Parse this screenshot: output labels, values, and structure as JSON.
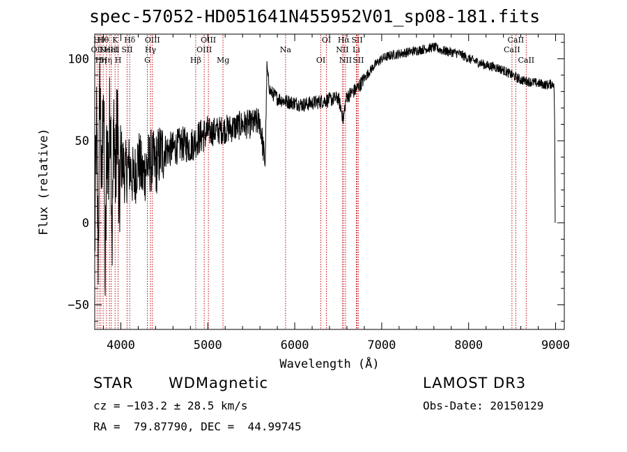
{
  "chart_data": {
    "type": "line",
    "title": "spec-57052-HD051641N455952V01_sp08-181.fits",
    "xlabel": "Wavelength (Å)",
    "ylabel": "Flux (relative)",
    "xlim": [
      3700,
      9100
    ],
    "ylim": [
      -65,
      115
    ],
    "x_ticks": [
      4000,
      5000,
      6000,
      7000,
      8000,
      9000
    ],
    "y_ticks": [
      -50,
      0,
      50,
      100
    ],
    "series": [
      {
        "name": "flux",
        "x": [
          3700,
          3720,
          3740,
          3760,
          3780,
          3800,
          3820,
          3840,
          3860,
          3880,
          3900,
          3920,
          3940,
          3960,
          3980,
          4000,
          4050,
          4100,
          4150,
          4200,
          4250,
          4300,
          4350,
          4400,
          4450,
          4500,
          4600,
          4700,
          4800,
          4900,
          5000,
          5100,
          5200,
          5300,
          5400,
          5500,
          5600,
          5660,
          5680,
          5700,
          5720,
          5800,
          5900,
          6000,
          6100,
          6200,
          6300,
          6400,
          6500,
          6540,
          6560,
          6580,
          6600,
          6650,
          6700,
          6750,
          6800,
          6900,
          7000,
          7100,
          7200,
          7300,
          7400,
          7500,
          7600,
          7700,
          7800,
          7900,
          8000,
          8100,
          8200,
          8300,
          8400,
          8500,
          8600,
          8700,
          8800,
          8900,
          8980,
          8990,
          8995
        ],
        "y": [
          -15,
          60,
          -20,
          90,
          10,
          95,
          -40,
          55,
          30,
          80,
          -10,
          65,
          20,
          75,
          0,
          40,
          30,
          35,
          25,
          40,
          28,
          35,
          38,
          35,
          42,
          44,
          45,
          48,
          47,
          52,
          55,
          56,
          57,
          58,
          60,
          60,
          62,
          35,
          95,
          85,
          80,
          76,
          74,
          73,
          72,
          73,
          74,
          75,
          76,
          68,
          62,
          72,
          77,
          79,
          81,
          84,
          88,
          95,
          100,
          102,
          103,
          104,
          105,
          106,
          107,
          105,
          104,
          103,
          100,
          98,
          96,
          95,
          93,
          90,
          87,
          86,
          85,
          84,
          85,
          60,
          0
        ]
      }
    ],
    "lines": [
      {
        "x": 3727,
        "label": "OII",
        "row": 2
      },
      {
        "x": 3750,
        "label": "Hθ",
        "row": 1
      },
      {
        "x": 3770,
        "label": "Hη",
        "row": 3
      },
      {
        "x": 3797,
        "label": "Hθ",
        "row": 1
      },
      {
        "x": 3835,
        "label": "Hη",
        "row": 3
      },
      {
        "x": 3869,
        "label": "NeIII",
        "row": 2
      },
      {
        "x": 3889,
        "label": "HeI",
        "row": 2
      },
      {
        "x": 3934,
        "label": "K",
        "row": 1
      },
      {
        "x": 3969,
        "label": "H",
        "row": 3
      },
      {
        "x": 4072,
        "label": "SII",
        "row": 2
      },
      {
        "x": 4102,
        "label": "Hδ",
        "row": 1
      },
      {
        "x": 4305,
        "label": "G",
        "row": 3
      },
      {
        "x": 4341,
        "label": "Hγ",
        "row": 2
      },
      {
        "x": 4363,
        "label": "OIII",
        "row": 1
      },
      {
        "x": 4861,
        "label": "Hβ",
        "row": 3
      },
      {
        "x": 4959,
        "label": "OIII",
        "row": 2
      },
      {
        "x": 5007,
        "label": "OIII",
        "row": 1
      },
      {
        "x": 5175,
        "label": "Mg",
        "row": 3
      },
      {
        "x": 5894,
        "label": "Na",
        "row": 2
      },
      {
        "x": 6300,
        "label": "OI",
        "row": 3
      },
      {
        "x": 6364,
        "label": "OI",
        "row": 1
      },
      {
        "x": 6548,
        "label": "NII",
        "row": 2
      },
      {
        "x": 6563,
        "label": "Hα",
        "row": 1
      },
      {
        "x": 6584,
        "label": "NII",
        "row": 3
      },
      {
        "x": 6708,
        "label": "Li",
        "row": 2
      },
      {
        "x": 6717,
        "label": "SII",
        "row": 1
      },
      {
        "x": 6731,
        "label": "SII",
        "row": 3
      },
      {
        "x": 8498,
        "label": "CaII",
        "row": 2
      },
      {
        "x": 8542,
        "label": "CaII",
        "row": 1
      },
      {
        "x": 8662,
        "label": "CaII",
        "row": 3
      }
    ]
  },
  "info": {
    "class_label": "STAR",
    "subclass": "WDMagnetic",
    "survey": "LAMOST DR3",
    "cz": "cz = −103.2 ± 28.5 km/s",
    "obs_date": "Obs-Date: 20150129",
    "coords": "RA =  79.87790, DEC =  44.99745"
  }
}
